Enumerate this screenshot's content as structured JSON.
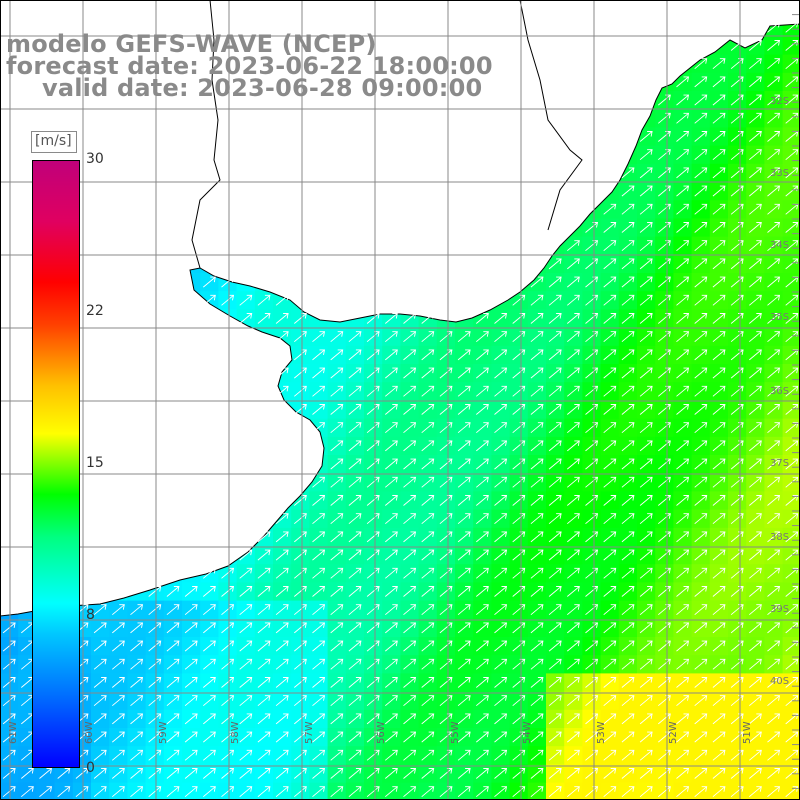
{
  "title": {
    "line1": "modelo GEFS-WAVE (NCEP)",
    "line2": "forecast date: 2023-06-22 18:00:00",
    "line3": "valid date: 2023-06-28 09:00:00"
  },
  "colorbar": {
    "unit": "[m/s]",
    "ticks": [
      "30",
      "22",
      "15",
      "8",
      "0"
    ],
    "tick_values": [
      30,
      22,
      15,
      8,
      0
    ],
    "min": 0,
    "max": 30,
    "colors": [
      "#0000ff",
      "#00c8ff",
      "#00ffff",
      "#00ff00",
      "#ffff00",
      "#ff8000",
      "#ff0000",
      "#c0007a"
    ]
  },
  "map": {
    "longitude_labels": [
      "61W",
      "60W",
      "59W",
      "58W",
      "57W",
      "56W",
      "55W",
      "54W",
      "53W",
      "52W",
      "51W"
    ],
    "latitude_labels": [
      "32S",
      "33S",
      "34S",
      "35S",
      "36S",
      "37S",
      "38S",
      "39S",
      "40S"
    ],
    "colors": {
      "land": "#ffffff",
      "grid": "#888888",
      "coast": "#000000",
      "arrows": "#ffffff"
    }
  }
}
